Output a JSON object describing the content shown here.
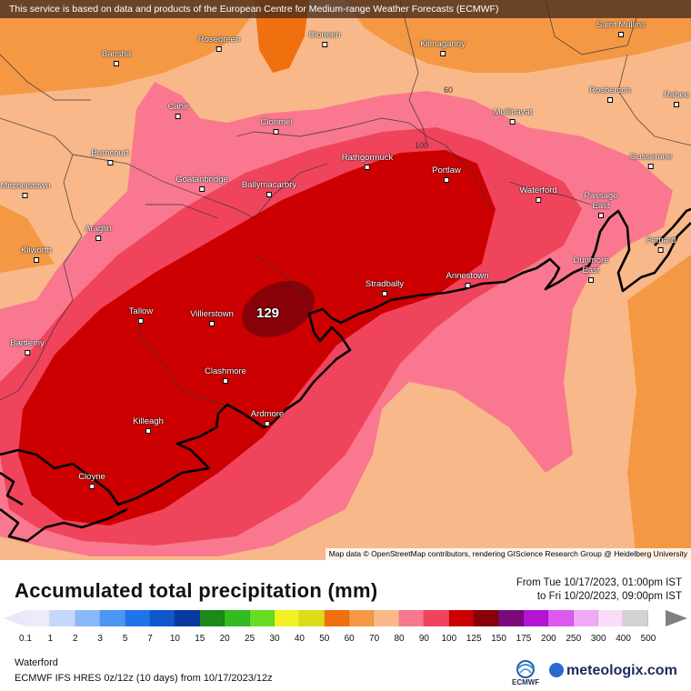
{
  "banner": "This service is based on data and products of the European Centre for Medium-range Weather Forecasts (ECMWF)",
  "attribution": "Map data © OpenStreetMap contributors, rendering GIScience Research Group @ Heidelberg University",
  "map": {
    "max_value": "129",
    "contour_labels": [
      "60",
      "100"
    ],
    "places": [
      {
        "name": "Rosegreen"
      },
      {
        "name": "Cloneen"
      },
      {
        "name": "Kilmaganny"
      },
      {
        "name": "Saint Mullins"
      },
      {
        "name": "Bansha"
      },
      {
        "name": "Cahir"
      },
      {
        "name": "Clonmel"
      },
      {
        "name": "Mullinavat"
      },
      {
        "name": "Rosbercon"
      },
      {
        "name": "Rahee"
      },
      {
        "name": "Burncourt"
      },
      {
        "name": "Rathgormuck"
      },
      {
        "name": "Portlaw"
      },
      {
        "name": "Gusserane"
      },
      {
        "name": "Mitchelstown"
      },
      {
        "name": "Goatanbridge"
      },
      {
        "name": "Ballymacarbry"
      },
      {
        "name": "Waterford"
      },
      {
        "name": "Passage East"
      },
      {
        "name": "Araglin"
      },
      {
        "name": "Fethard"
      },
      {
        "name": "Kilworth"
      },
      {
        "name": "Dunmore East"
      },
      {
        "name": "Annestown"
      },
      {
        "name": "Stradbally"
      },
      {
        "name": "Tallow"
      },
      {
        "name": "Villierstown"
      },
      {
        "name": "Bartlemy"
      },
      {
        "name": "Clashmore"
      },
      {
        "name": "Ardmore"
      },
      {
        "name": "Killeagh"
      },
      {
        "name": "Cloyne"
      }
    ]
  },
  "legend": {
    "title": "Accumulated total precipitation (mm)",
    "period_from": "From Tue 10/17/2023, 01:00pm IST",
    "period_to": "to Fri 10/20/2023, 09:00pm IST",
    "colors": [
      "#ebebfa",
      "#c5d8fb",
      "#8ab9fb",
      "#4d96f5",
      "#1f74e8",
      "#0e58cc",
      "#0a3aa0",
      "#1a8a1a",
      "#33bb22",
      "#66dd22",
      "#f2f222",
      "#dcdc1a",
      "#f07010",
      "#f59844",
      "#f9b889",
      "#f97890",
      "#f0445c",
      "#cc0000",
      "#880008",
      "#7a0a7a",
      "#b414d2",
      "#de58f2",
      "#f0aaf8",
      "#f9dcf9",
      "#d3d3d3"
    ],
    "ticks": [
      "0.1",
      "1",
      "2",
      "3",
      "5",
      "7",
      "10",
      "15",
      "20",
      "25",
      "30",
      "40",
      "50",
      "60",
      "70",
      "80",
      "90",
      "100",
      "125",
      "150",
      "175",
      "200",
      "250",
      "300",
      "400",
      "500"
    ],
    "location": "Waterford",
    "model": "ECMWF IFS HRES 0z/12z (10 days) from  10/17/2023/12z",
    "ecmwf_label": "ECMWF",
    "brand": "meteologix.com"
  }
}
